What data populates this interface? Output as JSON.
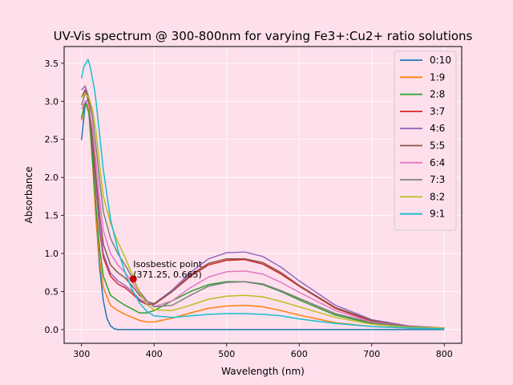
{
  "chart_data": {
    "type": "line",
    "title": "UV-Vis spectrum @ 300-800nm for varying Fe3+:Cu2+ ratio solutions",
    "xlabel": "Wavelength (nm)",
    "ylabel": "Absorbance",
    "xlim": [
      276,
      824
    ],
    "ylim": [
      -0.18,
      3.72
    ],
    "xticks": [
      300,
      400,
      500,
      600,
      700,
      800
    ],
    "yticks": [
      0.0,
      0.5,
      1.0,
      1.5,
      2.0,
      2.5,
      3.0,
      3.5
    ],
    "grid": true,
    "legend_position": "top-right",
    "colors": {
      "background": "#fde0ec",
      "plot_background": "#fde0ec",
      "grid": "#ffffff",
      "annotation_point": "#d00000"
    },
    "series": [
      {
        "name": "0:10",
        "color": "#1f77b4",
        "x": [
          300,
          305,
          310,
          315,
          320,
          325,
          330,
          335,
          340,
          345,
          350,
          360,
          380,
          400,
          450,
          500,
          525,
          550,
          600,
          650,
          700,
          750,
          800
        ],
        "y": [
          2.49,
          2.95,
          3.05,
          2.3,
          1.45,
          0.8,
          0.38,
          0.15,
          0.05,
          0.01,
          0.0,
          0.0,
          0.0,
          0.0,
          0.0,
          0.0,
          0.0,
          0.0,
          0.0,
          0.0,
          0.0,
          0.0,
          0.0
        ]
      },
      {
        "name": "1:9",
        "color": "#ff7f0e",
        "x": [
          300,
          305,
          310,
          315,
          320,
          325,
          330,
          340,
          350,
          360,
          370,
          380,
          390,
          400,
          425,
          450,
          475,
          500,
          525,
          550,
          575,
          600,
          650,
          700,
          750,
          800
        ],
        "y": [
          2.75,
          3.0,
          2.9,
          2.2,
          1.45,
          0.9,
          0.55,
          0.32,
          0.25,
          0.2,
          0.16,
          0.12,
          0.1,
          0.1,
          0.15,
          0.22,
          0.28,
          0.31,
          0.32,
          0.3,
          0.25,
          0.19,
          0.09,
          0.04,
          0.02,
          0.01
        ]
      },
      {
        "name": "2:8",
        "color": "#2ca02c",
        "x": [
          300,
          305,
          310,
          315,
          320,
          325,
          330,
          340,
          350,
          360,
          370,
          380,
          390,
          400,
          425,
          450,
          475,
          500,
          525,
          550,
          575,
          600,
          650,
          700,
          750,
          800
        ],
        "y": [
          2.78,
          3.0,
          2.85,
          2.25,
          1.6,
          1.05,
          0.7,
          0.45,
          0.38,
          0.32,
          0.27,
          0.22,
          0.22,
          0.25,
          0.38,
          0.5,
          0.59,
          0.63,
          0.63,
          0.59,
          0.5,
          0.39,
          0.19,
          0.08,
          0.03,
          0.01
        ]
      },
      {
        "name": "3:7",
        "color": "#d62728",
        "x": [
          300,
          305,
          310,
          315,
          320,
          325,
          330,
          340,
          350,
          360,
          370,
          380,
          390,
          400,
          425,
          450,
          475,
          500,
          525,
          550,
          575,
          600,
          650,
          700,
          750,
          800
        ],
        "y": [
          3.05,
          3.15,
          3.0,
          2.45,
          1.85,
          1.3,
          0.95,
          0.7,
          0.6,
          0.55,
          0.47,
          0.38,
          0.33,
          0.33,
          0.5,
          0.7,
          0.85,
          0.91,
          0.92,
          0.86,
          0.73,
          0.57,
          0.28,
          0.11,
          0.04,
          0.02
        ]
      },
      {
        "name": "4:6",
        "color": "#9467bd",
        "x": [
          300,
          305,
          310,
          315,
          320,
          325,
          330,
          340,
          350,
          360,
          370,
          380,
          390,
          400,
          425,
          450,
          475,
          500,
          525,
          550,
          575,
          600,
          650,
          700,
          750,
          800
        ],
        "y": [
          3.15,
          3.2,
          3.05,
          2.5,
          1.9,
          1.35,
          1.0,
          0.74,
          0.64,
          0.58,
          0.5,
          0.4,
          0.34,
          0.34,
          0.52,
          0.75,
          0.93,
          1.01,
          1.02,
          0.96,
          0.82,
          0.64,
          0.32,
          0.13,
          0.05,
          0.02
        ]
      },
      {
        "name": "5:5",
        "color": "#8c564b",
        "x": [
          300,
          305,
          310,
          315,
          320,
          325,
          330,
          340,
          350,
          360,
          370,
          380,
          390,
          400,
          425,
          450,
          475,
          500,
          525,
          550,
          575,
          600,
          650,
          700,
          750,
          800
        ],
        "y": [
          3.05,
          3.15,
          3.0,
          2.55,
          2.0,
          1.5,
          1.12,
          0.85,
          0.75,
          0.68,
          0.57,
          0.45,
          0.37,
          0.34,
          0.5,
          0.72,
          0.87,
          0.93,
          0.93,
          0.88,
          0.75,
          0.58,
          0.29,
          0.12,
          0.04,
          0.02
        ]
      },
      {
        "name": "6:4",
        "color": "#e377c2",
        "x": [
          300,
          305,
          310,
          315,
          320,
          325,
          330,
          340,
          350,
          360,
          370,
          380,
          390,
          400,
          425,
          450,
          475,
          500,
          525,
          550,
          575,
          600,
          650,
          700,
          750,
          800
        ],
        "y": [
          2.9,
          3.0,
          2.95,
          2.65,
          2.2,
          1.7,
          1.3,
          1.0,
          0.85,
          0.75,
          0.62,
          0.48,
          0.37,
          0.3,
          0.38,
          0.55,
          0.69,
          0.76,
          0.77,
          0.73,
          0.62,
          0.49,
          0.25,
          0.1,
          0.04,
          0.02
        ]
      },
      {
        "name": "7:3",
        "color": "#7f7f7f",
        "x": [
          300,
          305,
          310,
          315,
          320,
          325,
          330,
          340,
          350,
          360,
          370,
          380,
          390,
          400,
          425,
          450,
          475,
          500,
          525,
          550,
          575,
          600,
          650,
          700,
          750,
          800
        ],
        "y": [
          2.95,
          3.1,
          3.05,
          2.8,
          2.4,
          1.95,
          1.55,
          1.2,
          1.0,
          0.85,
          0.68,
          0.5,
          0.38,
          0.3,
          0.32,
          0.45,
          0.57,
          0.62,
          0.63,
          0.6,
          0.51,
          0.41,
          0.21,
          0.09,
          0.04,
          0.02
        ]
      },
      {
        "name": "8:2",
        "color": "#bcbd22",
        "x": [
          300,
          305,
          310,
          315,
          320,
          325,
          330,
          340,
          350,
          360,
          370,
          380,
          390,
          400,
          425,
          450,
          475,
          500,
          525,
          550,
          575,
          600,
          650,
          700,
          750,
          800
        ],
        "y": [
          3.05,
          3.1,
          3.05,
          2.9,
          2.6,
          2.15,
          1.75,
          1.4,
          1.15,
          0.95,
          0.72,
          0.48,
          0.33,
          0.26,
          0.25,
          0.32,
          0.4,
          0.44,
          0.45,
          0.43,
          0.37,
          0.3,
          0.16,
          0.07,
          0.03,
          0.02
        ]
      },
      {
        "name": "9:1",
        "color": "#17becf",
        "x": [
          300,
          303,
          306,
          309,
          312,
          315,
          318,
          320,
          325,
          330,
          340,
          350,
          360,
          370,
          380,
          390,
          400,
          425,
          450,
          475,
          500,
          525,
          550,
          575,
          600,
          650,
          700,
          750,
          800
        ],
        "y": [
          3.3,
          3.45,
          3.5,
          3.55,
          3.45,
          3.3,
          3.15,
          3.0,
          2.55,
          2.1,
          1.45,
          1.05,
          0.75,
          0.52,
          0.35,
          0.24,
          0.18,
          0.16,
          0.18,
          0.2,
          0.21,
          0.21,
          0.2,
          0.18,
          0.14,
          0.08,
          0.04,
          0.02,
          0.01
        ]
      }
    ],
    "annotation": {
      "label_line1": "Isosbestic point",
      "label_line2": "(371.25, 0.665)",
      "x": 371.25,
      "y": 0.665
    }
  }
}
